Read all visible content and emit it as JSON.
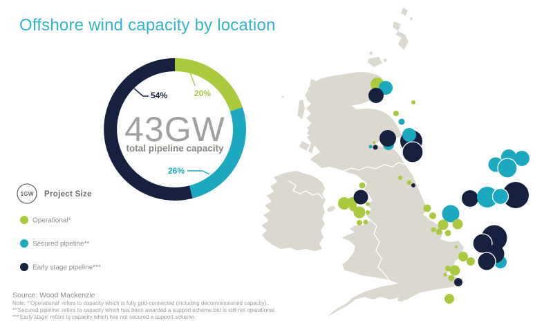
{
  "title": "Offshore wind capacity by location",
  "colors": {
    "operational": "#abc93e",
    "secured_pipeline": "#1ca9bf",
    "early_stage_pipeline": "#16203f",
    "land": "#dbd8cf",
    "title_text": "#32b4c8"
  },
  "donut_center": {
    "value": "43GW",
    "label": "total pipeline capacity"
  },
  "size_key": {
    "circle_label": "1GW",
    "label": "Project Size"
  },
  "legend_items": [
    {
      "label": "Operational*",
      "series": "op"
    },
    {
      "label": "Secured pipeline**",
      "series": "sec"
    },
    {
      "label": "Early stage pipeline***",
      "series": "es"
    }
  ],
  "source": "Source: Wood Mackenzie",
  "notes": [
    "Note: *'Operational' refers to capacity which is fully grid-connected (including decommissioned capacity).",
    "**'Secured pipeline' refers to capacity which has been awarded a support scheme but is still not operational.",
    "***'Early stage' refers to capacity which has not secured a support scheme."
  ],
  "chart_data": [
    {
      "type": "pie",
      "subtype": "donut",
      "title": "43GW",
      "subtitle": "total pipeline capacity",
      "units": "percent of total pipeline capacity",
      "clockwise_from_top": true,
      "slices": [
        {
          "label": "Operational",
          "series": "op",
          "pct": 20,
          "color": "#abc93e"
        },
        {
          "label": "Secured pipeline",
          "series": "sec",
          "pct": 26,
          "color": "#1ca9bf"
        },
        {
          "label": "Early stage pipeline",
          "series": "es",
          "pct": 54,
          "color": "#16203f"
        }
      ]
    },
    {
      "type": "scatter",
      "subtype": "bubble_map",
      "region": "Great Britain and Ireland offshore wind project locations",
      "size_key": {
        "label": "1GW",
        "radius_px": 14
      },
      "series_colors": {
        "op": "#abc93e",
        "sec": "#1ca9bf",
        "es": "#16203f"
      },
      "series_names": {
        "op": "Operational",
        "sec": "Secured pipeline",
        "es": "Early stage pipeline"
      },
      "point_format": [
        "x_px",
        "y_px",
        "radius_px",
        "series",
        "white_outline"
      ],
      "points": [
        [
          546,
          122,
          10,
          "op",
          0
        ],
        [
          558,
          127,
          10,
          "sec",
          0
        ],
        [
          544,
          138,
          11,
          "es",
          0
        ],
        [
          598,
          148,
          3,
          "op",
          0
        ],
        [
          573,
          164,
          4,
          "op",
          0
        ],
        [
          581,
          176,
          4.5,
          "sec",
          0
        ],
        [
          541,
          206,
          2,
          "op",
          0
        ],
        [
          536,
          212,
          2.5,
          "sec",
          0
        ],
        [
          543,
          213,
          3.5,
          "es",
          0
        ],
        [
          562,
          209,
          8,
          "sec",
          0
        ],
        [
          561,
          200,
          12,
          "es",
          0
        ],
        [
          595,
          204,
          16,
          "es",
          0
        ],
        [
          592,
          195,
          10,
          "sec",
          0
        ],
        [
          597,
          220,
          15,
          "es",
          1
        ],
        [
          579,
          257,
          3,
          "op",
          0
        ],
        [
          592,
          264,
          3.5,
          "op",
          0
        ],
        [
          598,
          268,
          3,
          "es",
          0
        ],
        [
          717,
          238,
          10.5,
          "sec",
          0
        ],
        [
          736,
          227,
          11,
          "sec",
          0
        ],
        [
          755,
          229,
          11,
          "sec",
          0
        ],
        [
          734,
          243,
          14,
          "sec",
          1
        ],
        [
          680,
          287,
          12,
          "es",
          0
        ],
        [
          705,
          285,
          15,
          "sec",
          0
        ],
        [
          746,
          282,
          19,
          "es",
          0
        ],
        [
          724,
          284,
          11.5,
          "sec",
          1
        ],
        [
          618,
          301,
          5.5,
          "op",
          0
        ],
        [
          652,
          309,
          12.5,
          "sec",
          0
        ],
        [
          626,
          312,
          5,
          "op",
          0
        ],
        [
          641,
          325,
          7.5,
          "op",
          0
        ],
        [
          662,
          324,
          7.5,
          "op",
          0
        ],
        [
          627,
          332,
          3.5,
          "op",
          0
        ],
        [
          635,
          335,
          4.5,
          "op",
          0
        ],
        [
          648,
          337,
          4.5,
          "op",
          0
        ],
        [
          660,
          357,
          2,
          "op",
          0
        ],
        [
          715,
          344,
          18.5,
          "es",
          0
        ],
        [
          698,
          352,
          14,
          "es",
          1
        ],
        [
          724,
          379,
          9,
          "sec",
          0
        ],
        [
          716,
          367,
          13.5,
          "es",
          0
        ],
        [
          704,
          378,
          13,
          "es",
          1
        ],
        [
          670,
          371,
          7,
          "op",
          0
        ],
        [
          681,
          378,
          6,
          "op",
          0
        ],
        [
          648,
          388,
          4,
          "op",
          0
        ],
        [
          658,
          391,
          7.5,
          "op",
          0
        ],
        [
          644,
          397,
          2.5,
          "op",
          0
        ],
        [
          653,
          402,
          4.5,
          "op",
          0
        ],
        [
          663,
          408,
          6,
          "es",
          0
        ],
        [
          650,
          432,
          7,
          "op",
          0
        ],
        [
          524,
          268,
          4.5,
          "op",
          0
        ],
        [
          510,
          292,
          7,
          "op",
          0
        ],
        [
          522,
          285,
          10.5,
          "es",
          0
        ],
        [
          498,
          294,
          9,
          "op",
          0
        ],
        [
          511,
          300,
          5.5,
          "op",
          0
        ],
        [
          532,
          295,
          3,
          "op",
          0
        ],
        [
          520,
          307,
          8.5,
          "op",
          0
        ],
        [
          532,
          307,
          3,
          "op",
          0
        ],
        [
          520,
          322,
          4,
          "op",
          0
        ],
        [
          529,
          321,
          3.5,
          "op",
          0
        ]
      ]
    }
  ]
}
